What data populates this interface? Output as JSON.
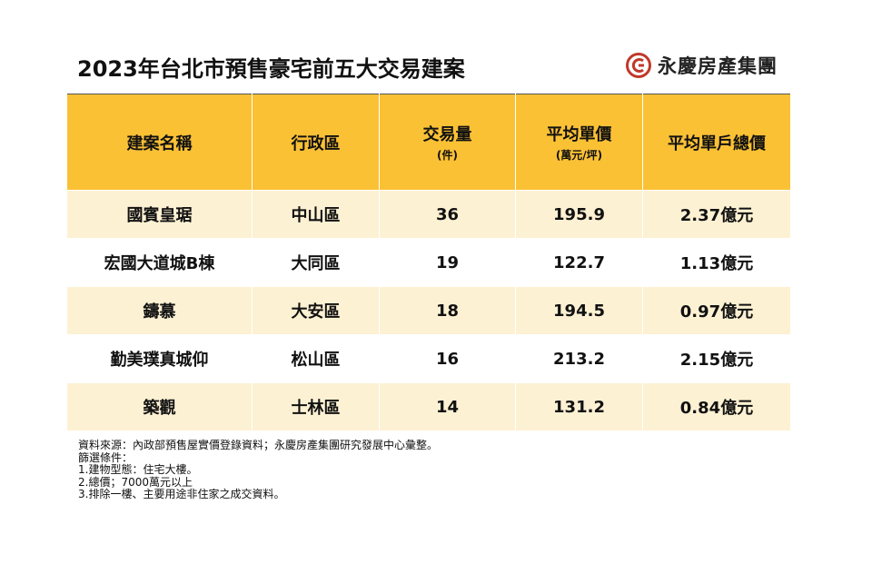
{
  "title": "2023年台北市預售豪宅前五大交易建案",
  "brand": {
    "name": "永慶房產集團",
    "logo_icon": "yungching-logo-icon",
    "color": "#c0392b"
  },
  "table": {
    "headers": [
      {
        "label": "建案名稱",
        "sub": ""
      },
      {
        "label": "行政區",
        "sub": ""
      },
      {
        "label": "交易量",
        "sub": "(件)"
      },
      {
        "label": "平均單價",
        "sub": "(萬元/坪)"
      },
      {
        "label": "平均單戶總價",
        "sub": ""
      }
    ],
    "rows": [
      [
        "國賓皇琚",
        "中山區",
        "36",
        "195.9",
        "2.37億元"
      ],
      [
        "宏國大道城B棟",
        "大同區",
        "19",
        "122.7",
        "1.13億元"
      ],
      [
        "鑄慕",
        "大安區",
        "18",
        "194.5",
        "0.97億元"
      ],
      [
        "勤美璞真城仰",
        "松山區",
        "16",
        "213.2",
        "2.15億元"
      ],
      [
        "築觀",
        "士林區",
        "14",
        "131.2",
        "0.84億元"
      ]
    ],
    "header_color": "#fbc135",
    "stripe_color": "#fdf1d3"
  },
  "notes": [
    "資料來源：內政部預售屋實價登錄資料；永慶房產集團研究發展中心彙整。",
    "篩選條件：",
    "1.建物型態：住宅大樓。",
    "2.總價；7000萬元以上",
    "3.排除一樓、主要用途非住家之成交資料。"
  ]
}
